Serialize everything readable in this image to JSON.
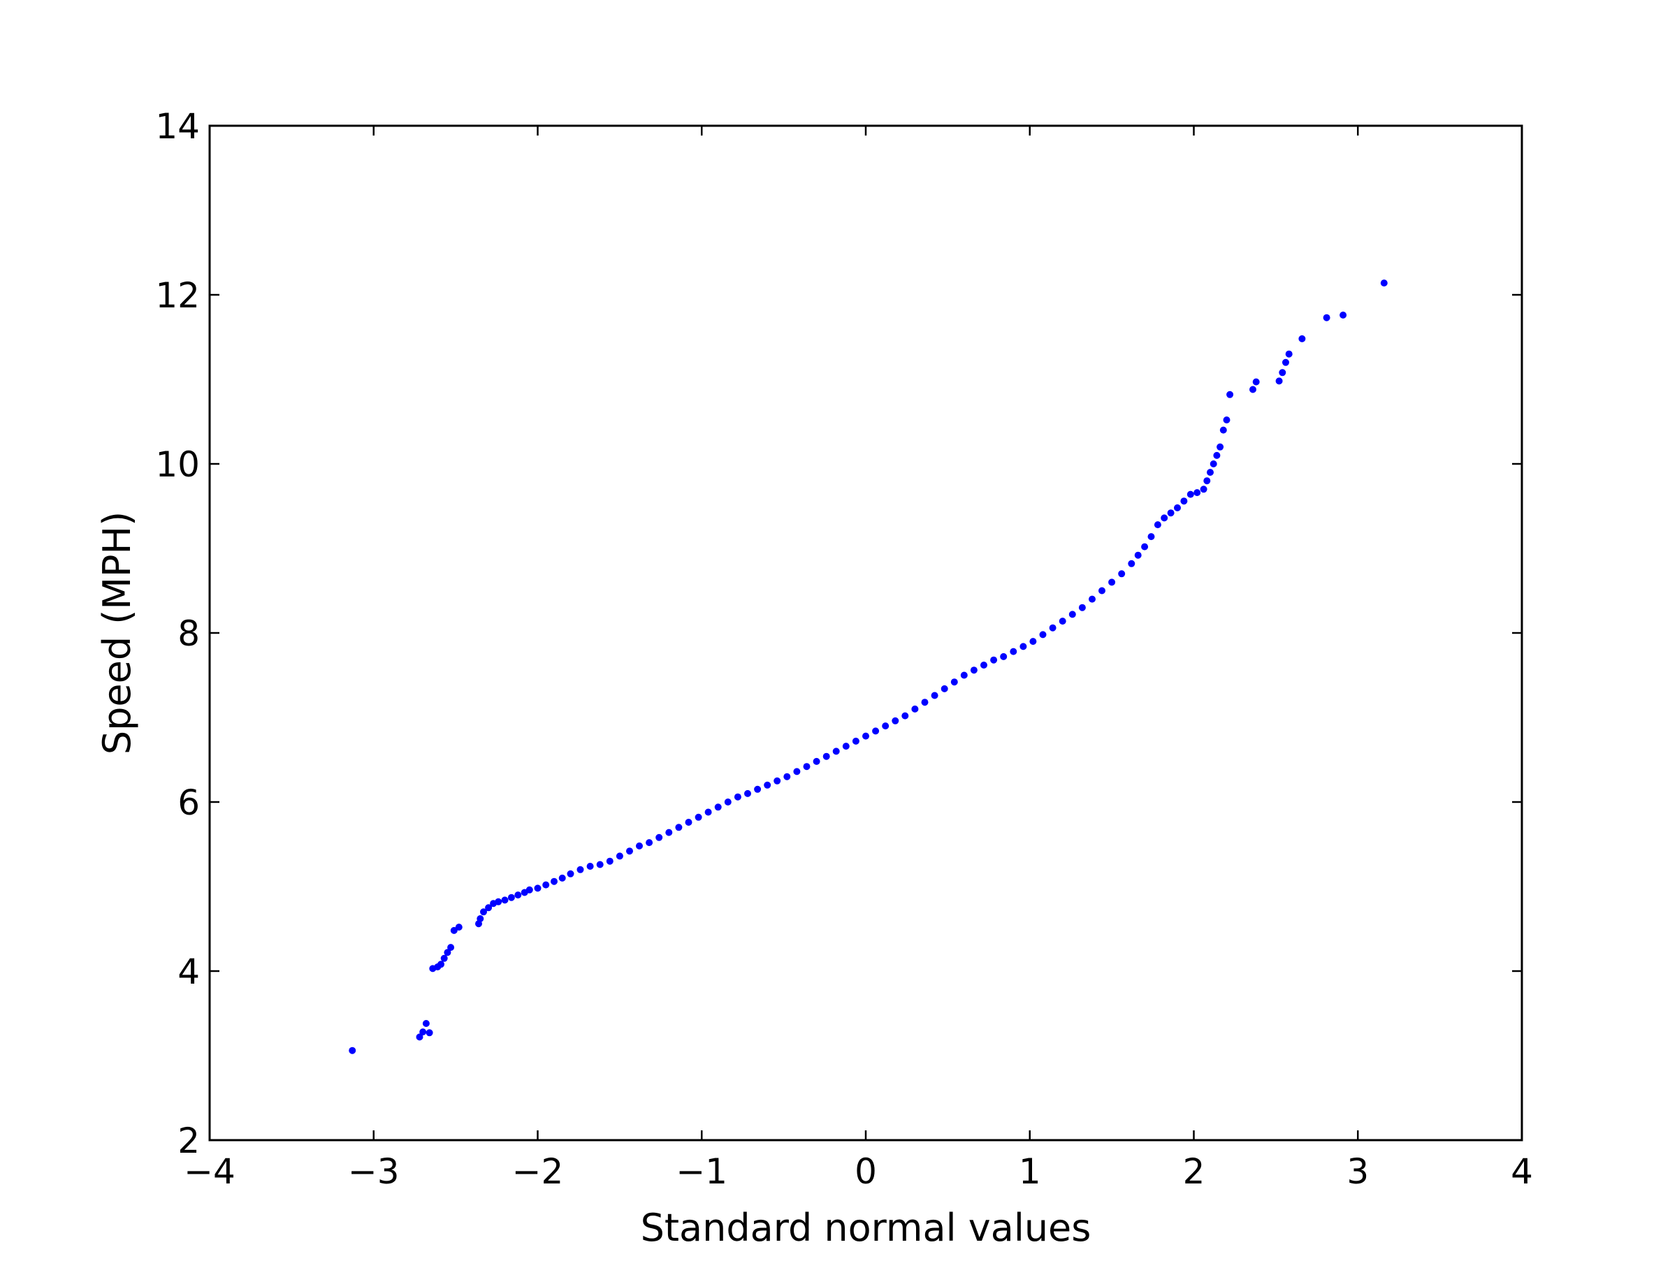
{
  "chart_data": {
    "type": "scatter",
    "title": "",
    "xlabel": "Standard normal values",
    "ylabel": "Speed (MPH)",
    "xlim": [
      -4,
      4
    ],
    "ylim": [
      2,
      14
    ],
    "x_ticks": [
      -4,
      -3,
      -2,
      -1,
      0,
      1,
      2,
      3,
      4
    ],
    "x_tick_labels": [
      "−4",
      "−3",
      "−2",
      "−1",
      "0",
      "1",
      "2",
      "3",
      "4"
    ],
    "y_ticks": [
      2,
      4,
      6,
      8,
      10,
      12,
      14
    ],
    "y_tick_labels": [
      "2",
      "4",
      "6",
      "8",
      "10",
      "12",
      "14"
    ],
    "grid": false,
    "legend": "none",
    "marker_color": "#0000ff",
    "series": [
      {
        "x": [
          -3.13,
          -2.72,
          -2.7,
          -2.68,
          -2.66,
          -2.64,
          -2.61,
          -2.59,
          -2.57,
          -2.55,
          -2.53,
          -2.51,
          -2.48,
          -2.36,
          -2.35,
          -2.33,
          -2.3,
          -2.27,
          -2.24,
          -2.2,
          -2.16,
          -2.12,
          -2.08,
          -2.05,
          -2.0,
          -1.95,
          -1.9,
          -1.85,
          -1.8,
          -1.74,
          -1.68,
          -1.62,
          -1.56,
          -1.5,
          -1.44,
          -1.38,
          -1.32,
          -1.26,
          -1.2,
          -1.14,
          -1.08,
          -1.02,
          -0.96,
          -0.9,
          -0.84,
          -0.78,
          -0.72,
          -0.66,
          -0.6,
          -0.54,
          -0.48,
          -0.42,
          -0.36,
          -0.3,
          -0.24,
          -0.18,
          -0.12,
          -0.06,
          0.0,
          0.06,
          0.12,
          0.18,
          0.24,
          0.3,
          0.36,
          0.42,
          0.48,
          0.54,
          0.6,
          0.66,
          0.72,
          0.78,
          0.84,
          0.9,
          0.96,
          1.02,
          1.08,
          1.14,
          1.2,
          1.26,
          1.32,
          1.38,
          1.44,
          1.5,
          1.56,
          1.62,
          1.66,
          1.7,
          1.74,
          1.78,
          1.82,
          1.86,
          1.9,
          1.94,
          1.98,
          2.02,
          2.06,
          2.08,
          2.1,
          2.12,
          2.14,
          2.16,
          2.18,
          2.2,
          2.22,
          2.36,
          2.38,
          2.52,
          2.54,
          2.56,
          2.58,
          2.66,
          2.81,
          2.91,
          3.16
        ],
        "y": [
          3.06,
          3.22,
          3.28,
          3.38,
          3.27,
          4.03,
          4.05,
          4.08,
          4.15,
          4.22,
          4.28,
          4.48,
          4.52,
          4.56,
          4.62,
          4.7,
          4.75,
          4.8,
          4.82,
          4.84,
          4.87,
          4.9,
          4.93,
          4.96,
          4.98,
          5.02,
          5.06,
          5.1,
          5.15,
          5.2,
          5.24,
          5.26,
          5.3,
          5.36,
          5.42,
          5.48,
          5.52,
          5.58,
          5.64,
          5.7,
          5.76,
          5.82,
          5.88,
          5.94,
          6.0,
          6.06,
          6.1,
          6.15,
          6.2,
          6.25,
          6.3,
          6.36,
          6.42,
          6.48,
          6.54,
          6.6,
          6.66,
          6.72,
          6.78,
          6.84,
          6.9,
          6.96,
          7.02,
          7.1,
          7.18,
          7.26,
          7.34,
          7.42,
          7.5,
          7.56,
          7.62,
          7.68,
          7.72,
          7.78,
          7.84,
          7.9,
          7.98,
          8.06,
          8.14,
          8.22,
          8.3,
          8.4,
          8.5,
          8.6,
          8.7,
          8.82,
          8.92,
          9.02,
          9.14,
          9.28,
          9.36,
          9.42,
          9.48,
          9.56,
          9.64,
          9.66,
          9.7,
          9.8,
          9.9,
          10.0,
          10.1,
          10.2,
          10.4,
          10.52,
          10.82,
          10.88,
          10.97,
          10.98,
          11.08,
          11.2,
          11.3,
          11.48,
          11.73,
          11.76,
          12.14
        ]
      }
    ]
  }
}
